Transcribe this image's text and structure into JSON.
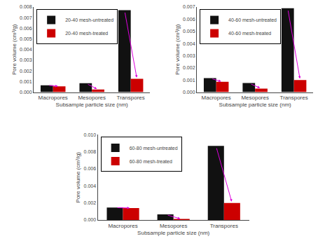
{
  "chart_data": [
    {
      "type": "bar",
      "xlabel": "Subsample particle size (nm)",
      "ylabel": "Pore volume (cm³/g)",
      "categories": [
        "Macropores",
        "Mesopores",
        "Transpores"
      ],
      "series": [
        {
          "name": "20-40 mesh-untreated",
          "color": "#111111",
          "values": [
            0.00065,
            0.00085,
            0.0077
          ]
        },
        {
          "name": "20-40 mesh-treated",
          "color": "#cc0000",
          "values": [
            0.00055,
            0.00025,
            0.00125
          ]
        }
      ],
      "ylim": [
        0,
        0.008
      ],
      "yticks": [
        {
          "value": 0.0,
          "label": "0.000"
        },
        {
          "value": 0.001,
          "label": "0.001"
        },
        {
          "value": 0.002,
          "label": "0.002"
        },
        {
          "value": 0.003,
          "label": "0.003"
        },
        {
          "value": 0.004,
          "label": "0.004"
        },
        {
          "value": 0.005,
          "label": "0.005"
        },
        {
          "value": 0.006,
          "label": "0.006"
        },
        {
          "value": 0.007,
          "label": "0.007"
        },
        {
          "value": 0.008,
          "label": "0.008"
        }
      ],
      "grid": false,
      "legend": "upper left"
    },
    {
      "type": "bar",
      "xlabel": "Subsample particle size (nm)",
      "ylabel": "Pore volume (cm³/g)",
      "categories": [
        "Macropores",
        "Mesopores",
        "Transpores"
      ],
      "series": [
        {
          "name": "40-60 mesh-untreated",
          "color": "#111111",
          "values": [
            0.00115,
            0.00075,
            0.0069
          ]
        },
        {
          "name": "40-60 mesh-treated",
          "color": "#cc0000",
          "values": [
            0.00085,
            0.0003,
            0.001
          ]
        }
      ],
      "ylim": [
        0,
        0.007
      ],
      "yticks": [
        {
          "value": 0.0,
          "label": "0.000"
        },
        {
          "value": 0.001,
          "label": "0.001"
        },
        {
          "value": 0.002,
          "label": "0.002"
        },
        {
          "value": 0.003,
          "label": "0.003"
        },
        {
          "value": 0.004,
          "label": "0.004"
        },
        {
          "value": 0.005,
          "label": "0.005"
        },
        {
          "value": 0.006,
          "label": "0.006"
        },
        {
          "value": 0.007,
          "label": "0.007"
        }
      ],
      "grid": false,
      "legend": "upper left"
    },
    {
      "type": "bar",
      "xlabel": "Subsample particle size (nm)",
      "ylabel": "Pore volume (cm³/g)",
      "categories": [
        "Macropores",
        "Mesopores",
        "Transpores"
      ],
      "series": [
        {
          "name": "60-80 mesh-untreated",
          "color": "#111111",
          "values": [
            0.00145,
            0.00065,
            0.0087
          ]
        },
        {
          "name": "60-80 mesh-treated",
          "color": "#cc0000",
          "values": [
            0.0014,
            0.0001,
            0.002
          ]
        }
      ],
      "ylim": [
        0,
        0.01
      ],
      "yticks": [
        {
          "value": 0.0,
          "label": "0.000"
        },
        {
          "value": 0.002,
          "label": "0.002"
        },
        {
          "value": 0.004,
          "label": "0.004"
        },
        {
          "value": 0.006,
          "label": "0.006"
        },
        {
          "value": 0.008,
          "label": "0.008"
        },
        {
          "value": 0.01,
          "label": "0.010"
        }
      ],
      "grid": false,
      "legend": "upper left"
    }
  ]
}
